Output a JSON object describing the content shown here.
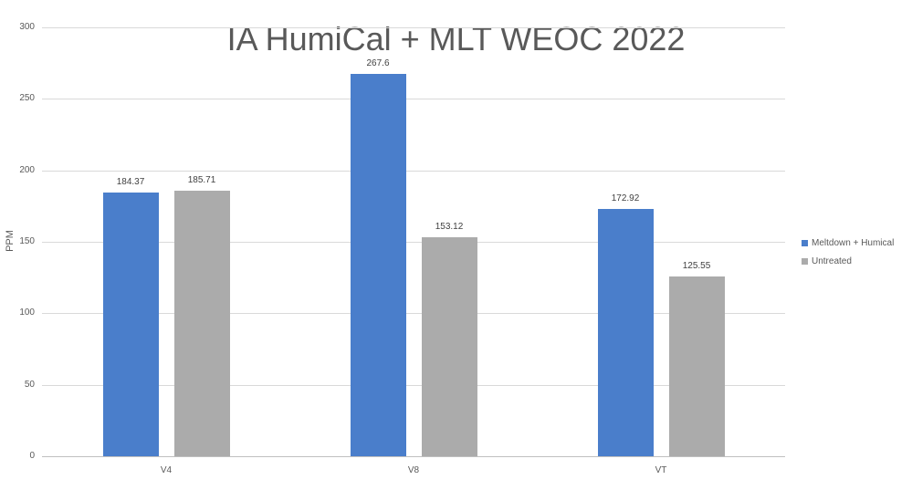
{
  "chart_data": {
    "type": "bar",
    "title": "IA HumiCal + MLT WEOC 2022",
    "xlabel": "",
    "ylabel": "PPM",
    "ylim": [
      0,
      300
    ],
    "yticks": [
      0,
      50,
      100,
      150,
      200,
      250,
      300
    ],
    "grid": true,
    "legend_position": "right",
    "categories": [
      "V4",
      "V8",
      "VT"
    ],
    "series": [
      {
        "name": "Meltdown + Humical",
        "color": "#4a7ecb",
        "values": [
          184.37,
          267.6,
          172.92
        ]
      },
      {
        "name": "Untreated",
        "color": "#ababab",
        "values": [
          185.71,
          153.12,
          125.55
        ]
      }
    ],
    "data_labels": [
      [
        "184.37",
        "185.71"
      ],
      [
        "267.6",
        "153.12"
      ],
      [
        "172.92",
        "125.55"
      ]
    ]
  }
}
